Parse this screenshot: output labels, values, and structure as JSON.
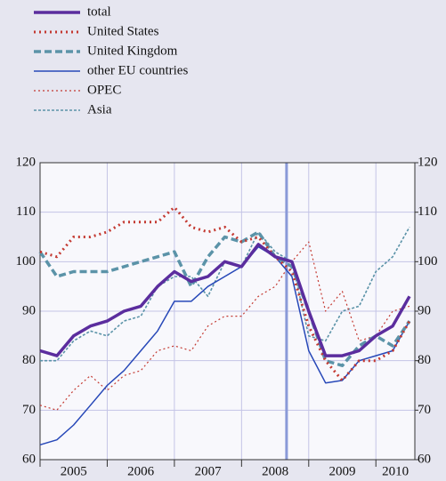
{
  "chart_data": {
    "type": "line",
    "x": [
      2005.0,
      2005.25,
      2005.5,
      2005.75,
      2006.0,
      2006.25,
      2006.5,
      2006.75,
      2007.0,
      2007.25,
      2007.5,
      2007.75,
      2008.0,
      2008.25,
      2008.5,
      2008.75,
      2009.0,
      2009.25,
      2009.5,
      2009.75,
      2010.0,
      2010.25,
      2010.5
    ],
    "series": [
      {
        "name": "total",
        "color": "#5b2d9e",
        "style": "thick",
        "values": [
          82,
          81,
          85,
          87,
          88,
          90,
          91,
          95,
          98,
          96,
          97,
          100,
          99,
          103.5,
          101,
          100,
          90,
          81,
          81,
          82,
          85,
          87,
          93
        ]
      },
      {
        "name": "United States",
        "color": "#c43a32",
        "style": "thick-dotted",
        "values": [
          102,
          101,
          105,
          105,
          106,
          108,
          108,
          108,
          111,
          107,
          106,
          107,
          104,
          105,
          101,
          98,
          87,
          80,
          76,
          80,
          80,
          82,
          88
        ]
      },
      {
        "name": "United Kingdom",
        "color": "#5b93a8",
        "style": "thick-dashed",
        "values": [
          102,
          97,
          98,
          98,
          98,
          99,
          100,
          101,
          102,
          95,
          101,
          105,
          104,
          106,
          101,
          99,
          90,
          80,
          79,
          83,
          85,
          83,
          88
        ]
      },
      {
        "name": "other EU countries",
        "color": "#2748b8",
        "style": "thin",
        "values": [
          63,
          64,
          67,
          71,
          75,
          78,
          82,
          86,
          92,
          92,
          95,
          97,
          99,
          103,
          101,
          97,
          82,
          75.5,
          76,
          80,
          81,
          82,
          88
        ]
      },
      {
        "name": "OPEC",
        "color": "#c43a32",
        "style": "thin-dotted",
        "values": [
          71,
          70,
          74,
          77,
          74,
          77,
          78,
          82,
          83,
          82,
          87,
          89,
          89,
          93,
          95,
          100,
          104,
          90,
          94,
          84,
          85,
          90,
          91
        ]
      },
      {
        "name": "Asia",
        "color": "#5b93a8",
        "style": "thin-dashed",
        "values": [
          80,
          80,
          84,
          86,
          85,
          88,
          89,
          95,
          97,
          97,
          93,
          100,
          99,
          106,
          102,
          100,
          85,
          84,
          90,
          91,
          98,
          101,
          107
        ]
      }
    ],
    "xlim": [
      2005,
      2010.58
    ],
    "xticks": [
      2005,
      2006,
      2007,
      2008,
      2009,
      2010
    ],
    "ylim": [
      60,
      120
    ],
    "yticks": [
      60,
      70,
      80,
      90,
      100,
      110,
      120
    ],
    "y2lim": [
      60,
      120
    ],
    "y2ticks": [
      60,
      70,
      80,
      90,
      100,
      110,
      120
    ],
    "vline": 2008.67,
    "grid": true,
    "legend": "top-left"
  }
}
